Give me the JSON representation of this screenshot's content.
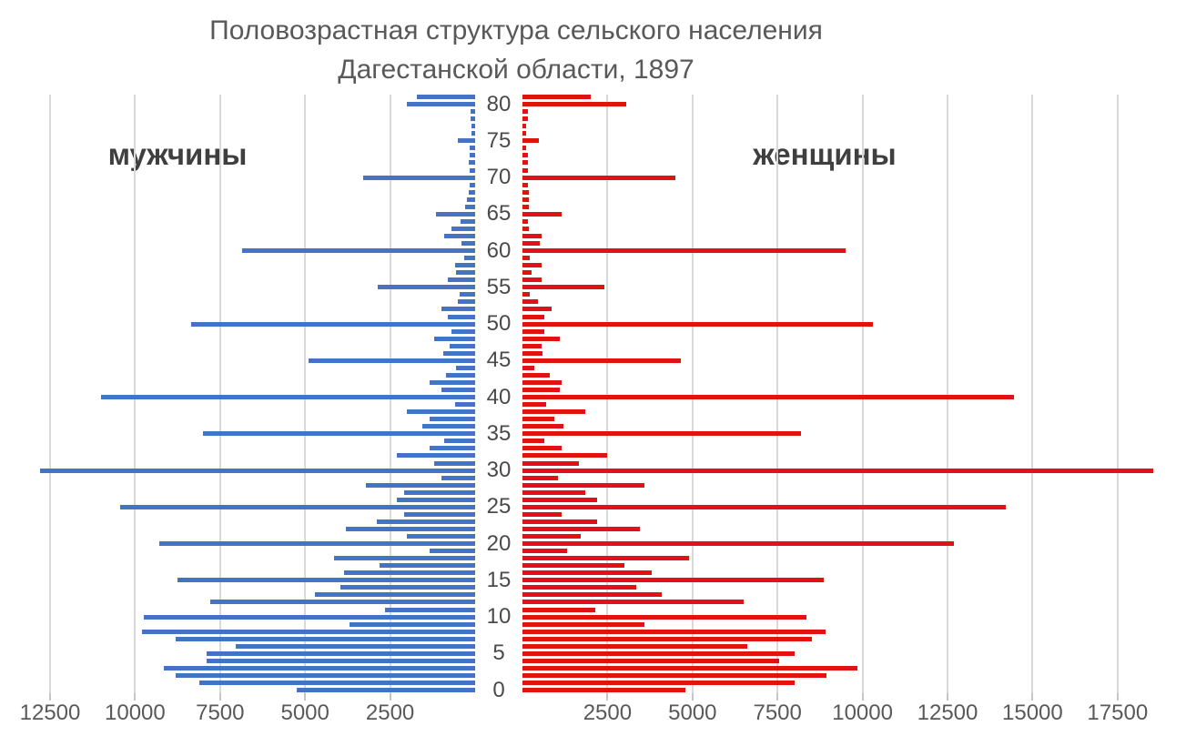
{
  "title": {
    "line1": "Половозрастная структура сельского населения",
    "line2": "Дагестанской области, 1897"
  },
  "side_labels": {
    "men": "мужчины",
    "women": "женщины"
  },
  "colors": {
    "men_bar": "#4472c4",
    "women_bar": "#e01212",
    "gridline": "#d9d9d9",
    "text": "#595959"
  },
  "chart_data": {
    "type": "bar",
    "subtype": "population-pyramid",
    "title": "Половозрастная структура сельского населения Дагестанской области, 1897",
    "orientation": "horizontal",
    "grid": true,
    "age_min": 0,
    "age_max": 81,
    "age_tick_interval": 5,
    "age_axis_labels": [
      "0",
      "5",
      "10",
      "15",
      "20",
      "25",
      "30",
      "35",
      "40",
      "45",
      "50",
      "55",
      "60",
      "65",
      "70",
      "75",
      "80"
    ],
    "left_axis_tick_values": [
      12500,
      10000,
      7500,
      5000,
      2500
    ],
    "left_axis_tick_labels": [
      "12500",
      "10000",
      "7500",
      "5000",
      "2500"
    ],
    "right_axis_tick_values": [
      2500,
      5000,
      7500,
      10000,
      12500,
      15000,
      17500
    ],
    "right_axis_tick_labels": [
      "2500",
      "5000",
      "7500",
      "10000",
      "12500",
      "15000",
      "17500"
    ],
    "units_per_gridline": 2500,
    "series": [
      {
        "name": "мужчины",
        "side": "left",
        "color": "#4472c4",
        "values_by_age": [
          5250,
          8100,
          8800,
          9150,
          7900,
          7900,
          7050,
          8800,
          9800,
          3700,
          9750,
          2650,
          7800,
          4700,
          3950,
          8750,
          3850,
          2800,
          4150,
          1350,
          9300,
          2000,
          3800,
          2900,
          2100,
          10450,
          2300,
          2100,
          3200,
          1000,
          12800,
          1200,
          2300,
          1350,
          900,
          8000,
          1550,
          1350,
          2000,
          600,
          11000,
          1000,
          1350,
          850,
          550,
          4900,
          950,
          750,
          1200,
          700,
          8350,
          800,
          1000,
          500,
          450,
          2870,
          800,
          550,
          600,
          320,
          6850,
          400,
          900,
          700,
          430,
          1150,
          300,
          250,
          200,
          150,
          3300,
          150,
          200,
          150,
          150,
          500,
          120,
          120,
          130,
          140,
          2000,
          1700
        ]
      },
      {
        "name": "женщины",
        "side": "right",
        "color": "#e01212",
        "values_by_age": [
          4800,
          8000,
          8950,
          9850,
          7550,
          8000,
          6600,
          8500,
          8900,
          3600,
          8350,
          2150,
          6500,
          4100,
          3350,
          8850,
          3800,
          3000,
          4900,
          1300,
          12700,
          1700,
          3450,
          2200,
          1150,
          14200,
          2200,
          1850,
          3600,
          1050,
          18550,
          1650,
          2500,
          1150,
          650,
          8200,
          1200,
          950,
          1850,
          700,
          14450,
          1100,
          1150,
          800,
          350,
          4650,
          600,
          550,
          1100,
          650,
          10300,
          650,
          850,
          450,
          220,
          2400,
          550,
          280,
          550,
          220,
          9500,
          520,
          550,
          200,
          150,
          1150,
          200,
          200,
          180,
          150,
          4500,
          150,
          150,
          150,
          100,
          480,
          120,
          100,
          150,
          150,
          3050,
          2000
        ]
      }
    ]
  }
}
